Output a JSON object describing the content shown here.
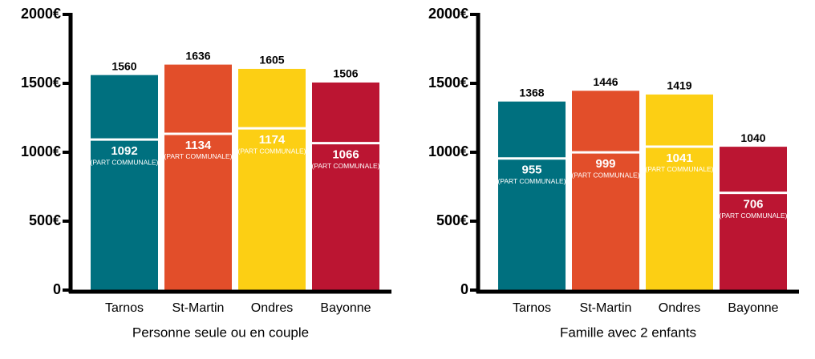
{
  "chart_data": [
    {
      "type": "bar",
      "xlabel": "Personne seule ou en couple",
      "categories": [
        "Tarnos",
        "St-Martin",
        "Ondres",
        "Bayonne"
      ],
      "values": [
        1560,
        1636,
        1605,
        1506
      ],
      "part_values": [
        1092,
        1134,
        1174,
        1066
      ],
      "part_label": "(PART COMMUNALE)",
      "colors": [
        "#00707f",
        "#e24e2a",
        "#fccf14",
        "#bb1532"
      ],
      "ylim": [
        0,
        2000
      ],
      "yticks": [
        0,
        {
          "value": 500,
          "label": "500€"
        },
        {
          "value": 1000,
          "label": "1000€"
        },
        {
          "value": 1500,
          "label": "1500€"
        },
        {
          "value": 2000,
          "label": "2000€"
        }
      ]
    },
    {
      "type": "bar",
      "xlabel": "Famille avec 2 enfants",
      "categories": [
        "Tarnos",
        "St-Martin",
        "Ondres",
        "Bayonne"
      ],
      "values": [
        1368,
        1446,
        1419,
        1040
      ],
      "part_values": [
        955,
        999,
        1041,
        706
      ],
      "part_label": "(PART COMMUNALE)",
      "colors": [
        "#00707f",
        "#e24e2a",
        "#fccf14",
        "#bb1532"
      ],
      "ylim": [
        0,
        2000
      ],
      "yticks": [
        0,
        {
          "value": 500,
          "label": "500€"
        },
        {
          "value": 1000,
          "label": "1000€"
        },
        {
          "value": 1500,
          "label": "1500€"
        },
        {
          "value": 2000,
          "label": "2000€"
        }
      ]
    }
  ]
}
